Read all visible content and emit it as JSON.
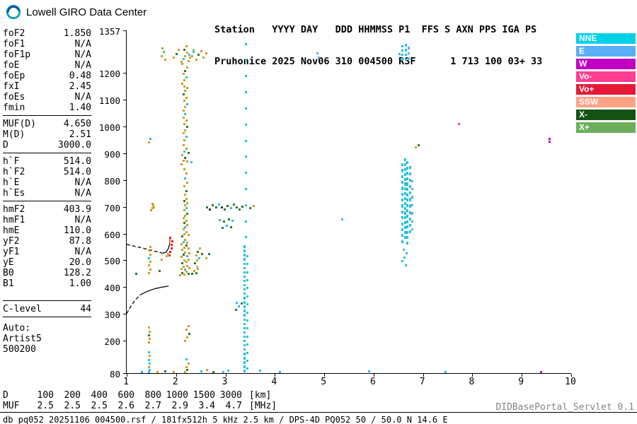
{
  "header": {
    "logo_title": "Lowell GIRO Data Center",
    "station_line1": "Station   YYYY DAY   DDD HHMMSS P1  FFS S AXN PPS IGA PS",
    "station_line2": "Pruhonice 2025 Nov06 310 004500 RSF      1 713 100 03+ 33"
  },
  "params": {
    "groups": [
      {
        "rows": [
          [
            "foF2",
            "1.850"
          ],
          [
            "foF1",
            "N/A"
          ],
          [
            "foF1p",
            "N/A"
          ],
          [
            "foE",
            "N/A"
          ],
          [
            "foEp",
            "0.48"
          ],
          [
            "fxI",
            "2.45"
          ],
          [
            "foEs",
            "N/A"
          ],
          [
            "fmin",
            "1.40"
          ]
        ]
      },
      {
        "rows": [
          [
            "MUF(D)",
            "4.650"
          ],
          [
            "M(D)",
            "2.51"
          ],
          [
            "D",
            "3000.0"
          ]
        ]
      },
      {
        "rows": [
          [
            "h`F",
            "514.0"
          ],
          [
            "h`F2",
            "514.0"
          ],
          [
            "h`E",
            "N/A"
          ],
          [
            "h`Es",
            "N/A"
          ]
        ]
      },
      {
        "rows": [
          [
            "hmF2",
            "403.9"
          ],
          [
            "hmF1",
            "N/A"
          ],
          [
            "hmE",
            "110.0"
          ],
          [
            "yF2",
            "87.8"
          ],
          [
            "yF1",
            "N/A"
          ],
          [
            "yE",
            "20.0"
          ],
          [
            "B0",
            "128.2"
          ],
          [
            "B1",
            "1.00"
          ]
        ]
      },
      {
        "rows": [
          [
            "C-level",
            "44"
          ]
        ]
      }
    ],
    "auto_lines": [
      "Auto:",
      "Artist5",
      "500200"
    ]
  },
  "legend": {
    "items": [
      {
        "label": "NNE",
        "color": "#00d0e8"
      },
      {
        "label": "E",
        "color": "#5aaef5"
      },
      {
        "label": "W",
        "color": "#c000c0"
      },
      {
        "label": "Vo-",
        "color": "#ff3d92"
      },
      {
        "label": "Vo+",
        "color": "#e51937"
      },
      {
        "label": "SSW",
        "color": "#ffa284"
      },
      {
        "label": "X-",
        "color": "#145214"
      },
      {
        "label": "X+",
        "color": "#6cae5c"
      }
    ]
  },
  "footer": {
    "d_row": {
      "label": "D",
      "values": [
        "100",
        "200",
        "400",
        "600",
        "800",
        "1000",
        "1500",
        "3000"
      ],
      "unit": "[km]"
    },
    "muf_row": {
      "label": "MUF",
      "values": [
        "2.5",
        "2.5",
        "2.5",
        "2.6",
        "2.7",
        "2.9",
        "3.4",
        "4.7"
      ],
      "unit": "[MHz]"
    },
    "status": "db pq052 20251106 004500.rsf / 181fx512h 5 kHz 2.5 km / DPS-4D PQ052 50 / 50.0 N 14.6 E",
    "servlet": "DIDBasePortal_Servlet 0.1"
  },
  "chart_data": {
    "type": "scatter",
    "title": "",
    "x_unit": "[MHz]",
    "y_unit": "[km]",
    "xlim": [
      1,
      10
    ],
    "ylim": [
      80,
      1357
    ],
    "x_ticks": [
      1,
      2,
      3,
      4,
      5,
      6,
      7,
      8,
      9,
      10
    ],
    "y_ticks": [
      1357,
      1200,
      1100,
      1000,
      900,
      800,
      700,
      600,
      500,
      400,
      300,
      200,
      80
    ],
    "grid": false,
    "legend_position": "right",
    "colors": {
      "a": "#c8a028",
      "g": "#2f7a2f",
      "c": "#25c0dd",
      "b": "#5aaef5",
      "r": "#e02020",
      "m": "#bb00bb",
      "p": "#ff3d92",
      "k": "#333333",
      "l": "#8fcf6f",
      "s": "#ffa284"
    },
    "points": [
      [
        1.7,
        1262,
        "a"
      ],
      [
        1.74,
        1277,
        "c"
      ],
      [
        1.78,
        1250,
        "a"
      ],
      [
        1.72,
        1290,
        "a"
      ],
      [
        1.95,
        1256,
        "a"
      ],
      [
        2.0,
        1271,
        "g"
      ],
      [
        2.05,
        1286,
        "a"
      ],
      [
        2.1,
        1240,
        "a"
      ],
      [
        2.14,
        1252,
        "c"
      ],
      [
        2.18,
        1263,
        "a"
      ],
      [
        2.22,
        1275,
        "a"
      ],
      [
        2.16,
        1287,
        "g"
      ],
      [
        2.2,
        1298,
        "a"
      ],
      [
        2.12,
        1232,
        "a"
      ],
      [
        2.24,
        1244,
        "a"
      ],
      [
        2.26,
        1268,
        "c"
      ],
      [
        2.28,
        1256,
        "a"
      ],
      [
        2.32,
        1262,
        "a"
      ],
      [
        2.34,
        1285,
        "l"
      ],
      [
        2.35,
        1278,
        "c"
      ],
      [
        2.4,
        1250,
        "a"
      ],
      [
        2.45,
        1268,
        "g"
      ],
      [
        2.5,
        1280,
        "a"
      ],
      [
        2.55,
        1258,
        "a"
      ],
      [
        2.6,
        1272,
        "a"
      ],
      [
        4.85,
        1272,
        "b"
      ],
      [
        4.88,
        1258,
        "b"
      ],
      [
        6.52,
        1270,
        "c"
      ],
      [
        2.12,
        1160,
        "a"
      ],
      [
        2.16,
        1172,
        "a"
      ],
      [
        2.2,
        1184,
        "c"
      ],
      [
        2.14,
        1196,
        "a"
      ],
      [
        2.18,
        1208,
        "g"
      ],
      [
        2.22,
        1220,
        "a"
      ],
      [
        2.16,
        1150,
        "a"
      ],
      [
        2.14,
        1060,
        "a"
      ],
      [
        2.18,
        1072,
        "a"
      ],
      [
        2.22,
        1084,
        "c"
      ],
      [
        2.16,
        1096,
        "a"
      ],
      [
        2.2,
        1108,
        "a"
      ],
      [
        2.14,
        1120,
        "g"
      ],
      [
        2.18,
        1132,
        "a"
      ],
      [
        2.22,
        1144,
        "a"
      ],
      [
        2.16,
        950,
        "a"
      ],
      [
        2.2,
        962,
        "c"
      ],
      [
        2.14,
        974,
        "a"
      ],
      [
        2.18,
        986,
        "a"
      ],
      [
        2.22,
        998,
        "g"
      ],
      [
        2.16,
        1010,
        "a"
      ],
      [
        2.2,
        1022,
        "a"
      ],
      [
        2.14,
        1034,
        "a"
      ],
      [
        2.18,
        1046,
        "c"
      ],
      [
        2.1,
        860,
        "a"
      ],
      [
        2.14,
        872,
        "a"
      ],
      [
        2.18,
        882,
        "g"
      ],
      [
        2.22,
        870,
        "a"
      ],
      [
        2.12,
        894,
        "a"
      ],
      [
        2.16,
        906,
        "c"
      ],
      [
        2.2,
        918,
        "a"
      ],
      [
        2.24,
        902,
        "g"
      ],
      [
        2.14,
        930,
        "a"
      ],
      [
        2.3,
        868,
        "c"
      ],
      [
        2.08,
        445,
        "a"
      ],
      [
        2.12,
        455,
        "g"
      ],
      [
        2.16,
        448,
        "a"
      ],
      [
        2.2,
        460,
        "a"
      ],
      [
        2.24,
        452,
        "g"
      ],
      [
        2.1,
        470,
        "a"
      ],
      [
        2.14,
        478,
        "a"
      ],
      [
        2.18,
        468,
        "c"
      ],
      [
        2.22,
        480,
        "a"
      ],
      [
        2.26,
        472,
        "a"
      ],
      [
        2.12,
        492,
        "g"
      ],
      [
        2.16,
        500,
        "a"
      ],
      [
        2.2,
        495,
        "a"
      ],
      [
        2.24,
        505,
        "a"
      ],
      [
        2.1,
        515,
        "a"
      ],
      [
        2.14,
        522,
        "g"
      ],
      [
        2.18,
        530,
        "a"
      ],
      [
        2.22,
        518,
        "c"
      ],
      [
        2.26,
        528,
        "a"
      ],
      [
        2.12,
        540,
        "a"
      ],
      [
        2.16,
        548,
        "a"
      ],
      [
        2.2,
        556,
        "g"
      ],
      [
        2.24,
        546,
        "a"
      ],
      [
        2.1,
        562,
        "a"
      ],
      [
        2.14,
        570,
        "c"
      ],
      [
        2.18,
        578,
        "a"
      ],
      [
        2.22,
        568,
        "a"
      ],
      [
        2.12,
        590,
        "g"
      ],
      [
        2.16,
        598,
        "a"
      ],
      [
        2.2,
        606,
        "a"
      ],
      [
        2.24,
        596,
        "a"
      ],
      [
        2.14,
        616,
        "a"
      ],
      [
        2.18,
        624,
        "c"
      ],
      [
        2.22,
        632,
        "a"
      ],
      [
        2.16,
        642,
        "g"
      ],
      [
        2.2,
        650,
        "a"
      ],
      [
        2.14,
        660,
        "a"
      ],
      [
        2.18,
        668,
        "a"
      ],
      [
        2.22,
        676,
        "g"
      ],
      [
        2.16,
        688,
        "a"
      ],
      [
        2.2,
        696,
        "c"
      ],
      [
        2.18,
        706,
        "a"
      ],
      [
        2.22,
        714,
        "a"
      ],
      [
        2.16,
        722,
        "g"
      ],
      [
        2.2,
        730,
        "a"
      ],
      [
        2.18,
        745,
        "a"
      ],
      [
        2.2,
        760,
        "g"
      ],
      [
        2.16,
        778,
        "a"
      ],
      [
        2.22,
        792,
        "a"
      ],
      [
        2.18,
        808,
        "c"
      ],
      [
        2.2,
        824,
        "a"
      ],
      [
        2.16,
        840,
        "a"
      ],
      [
        2.32,
        450,
        "g"
      ],
      [
        2.36,
        462,
        "a"
      ],
      [
        2.4,
        455,
        "g"
      ],
      [
        2.42,
        478,
        "l"
      ],
      [
        2.44,
        470,
        "a"
      ],
      [
        2.38,
        490,
        "g"
      ],
      [
        2.42,
        500,
        "a"
      ],
      [
        2.46,
        510,
        "c"
      ],
      [
        2.4,
        520,
        "a"
      ],
      [
        2.44,
        532,
        "g"
      ],
      [
        2.48,
        545,
        "a"
      ],
      [
        2.52,
        526,
        "g"
      ],
      [
        2.6,
        510,
        "a"
      ],
      [
        2.66,
        525,
        "g"
      ],
      [
        1.86,
        520,
        "r"
      ],
      [
        1.88,
        532,
        "r"
      ],
      [
        1.9,
        545,
        "r"
      ],
      [
        1.9,
        558,
        "r"
      ],
      [
        1.92,
        572,
        "r"
      ],
      [
        1.88,
        585,
        "r"
      ],
      [
        1.8,
        516,
        "a"
      ],
      [
        1.83,
        524,
        "a"
      ],
      [
        1.44,
        85,
        "c"
      ],
      [
        1.46,
        93,
        "c"
      ],
      [
        1.44,
        104,
        "a"
      ],
      [
        1.46,
        117,
        "c"
      ],
      [
        1.44,
        131,
        "c"
      ],
      [
        1.46,
        147,
        "a"
      ],
      [
        1.45,
        160,
        "c"
      ],
      [
        1.44,
        195,
        "a"
      ],
      [
        1.46,
        208,
        "a"
      ],
      [
        1.44,
        222,
        "g"
      ],
      [
        1.46,
        236,
        "a"
      ],
      [
        1.44,
        250,
        "a"
      ],
      [
        1.45,
        455,
        "a"
      ],
      [
        1.47,
        468,
        "a"
      ],
      [
        1.45,
        482,
        "a"
      ],
      [
        1.47,
        496,
        "a"
      ],
      [
        1.45,
        509,
        "c"
      ],
      [
        1.47,
        523,
        "a"
      ],
      [
        1.45,
        537,
        "a"
      ],
      [
        1.47,
        550,
        "a"
      ],
      [
        1.49,
        688,
        "a"
      ],
      [
        1.51,
        697,
        "a"
      ],
      [
        1.53,
        706,
        "a"
      ],
      [
        1.55,
        699,
        "a"
      ],
      [
        1.51,
        713,
        "a"
      ],
      [
        1.45,
        940,
        "a"
      ],
      [
        1.47,
        955,
        "c"
      ],
      [
        1.18,
        452,
        "g"
      ],
      [
        1.66,
        462,
        "g"
      ],
      [
        1.7,
        505,
        "a"
      ],
      [
        1.3,
        86,
        "c"
      ],
      [
        1.62,
        86,
        "a"
      ],
      [
        1.78,
        88,
        "g"
      ],
      [
        1.95,
        85,
        "a"
      ],
      [
        2.18,
        85,
        "a"
      ],
      [
        2.22,
        93,
        "g"
      ],
      [
        2.2,
        105,
        "a"
      ],
      [
        2.24,
        118,
        "a"
      ],
      [
        2.2,
        132,
        "c"
      ],
      [
        2.18,
        200,
        "a"
      ],
      [
        2.22,
        214,
        "a"
      ],
      [
        2.26,
        228,
        "g"
      ],
      [
        2.2,
        242,
        "a"
      ],
      [
        2.24,
        256,
        "a"
      ],
      [
        2.5,
        88,
        "c"
      ],
      [
        2.62,
        94,
        "a"
      ],
      [
        2.75,
        86,
        "g"
      ],
      [
        2.95,
        86,
        "b"
      ],
      [
        3.05,
        90,
        "c"
      ],
      [
        3.7,
        90,
        "c"
      ],
      [
        4.1,
        86,
        "c"
      ],
      [
        5.9,
        88,
        "c"
      ],
      [
        7.45,
        86,
        "c"
      ],
      [
        9.38,
        86,
        "m"
      ],
      [
        2.62,
        700,
        "g"
      ],
      [
        2.68,
        692,
        "k"
      ],
      [
        2.74,
        706,
        "g"
      ],
      [
        2.8,
        698,
        "g"
      ],
      [
        2.86,
        710,
        "c"
      ],
      [
        2.92,
        700,
        "k"
      ],
      [
        2.98,
        692,
        "g"
      ],
      [
        3.04,
        704,
        "g"
      ],
      [
        3.1,
        696,
        "c"
      ],
      [
        3.16,
        708,
        "g"
      ],
      [
        3.22,
        698,
        "g"
      ],
      [
        3.28,
        690,
        "g"
      ],
      [
        3.34,
        702,
        "g"
      ],
      [
        3.5,
        696,
        "g"
      ],
      [
        3.56,
        703,
        "a"
      ],
      [
        2.88,
        652,
        "c"
      ],
      [
        2.96,
        645,
        "g"
      ],
      [
        3.06,
        655,
        "g"
      ],
      [
        3.14,
        648,
        "c"
      ],
      [
        2.94,
        622,
        "g"
      ],
      [
        3.02,
        630,
        "c"
      ],
      [
        3.1,
        625,
        "g"
      ],
      [
        3.2,
        318,
        "g"
      ],
      [
        3.26,
        330,
        "c"
      ],
      [
        3.32,
        341,
        "g"
      ],
      [
        3.22,
        343,
        "c"
      ],
      [
        5.35,
        655,
        "b"
      ],
      [
        6.6,
        540,
        "b"
      ],
      [
        6.66,
        528,
        "c"
      ],
      [
        6.62,
        512,
        "c"
      ],
      [
        6.58,
        498,
        "c"
      ],
      [
        6.64,
        484,
        "c"
      ],
      [
        6.85,
        922,
        "a"
      ],
      [
        6.9,
        931,
        "g"
      ],
      [
        7.72,
        1010,
        "p"
      ],
      [
        9.55,
        943,
        "m"
      ],
      [
        9.56,
        953,
        "m"
      ]
    ],
    "streaks": [
      {
        "x": 3.38,
        "y0": 80,
        "y1": 556,
        "step": 16,
        "len": 9,
        "c": "c"
      },
      {
        "x": 3.44,
        "y0": 80,
        "y1": 520,
        "step": 30,
        "len": 8,
        "c": "c"
      },
      {
        "x": 3.41,
        "y0": 580,
        "y1": 1310,
        "step": 60,
        "len": 8,
        "c": "c"
      },
      {
        "x": 6.58,
        "y0": 560,
        "y1": 862,
        "step": 22,
        "len": 11,
        "c": "c"
      },
      {
        "x": 6.63,
        "y0": 575,
        "y1": 880,
        "step": 18,
        "len": 11,
        "c": "c"
      },
      {
        "x": 6.68,
        "y0": 552,
        "y1": 870,
        "step": 20,
        "len": 11,
        "c": "c"
      },
      {
        "x": 6.73,
        "y0": 590,
        "y1": 852,
        "step": 24,
        "len": 11,
        "c": "c"
      },
      {
        "x": 6.78,
        "y0": 612,
        "y1": 800,
        "step": 30,
        "len": 9,
        "c": "b"
      },
      {
        "x": 6.58,
        "y0": 1246,
        "y1": 1302,
        "step": 16,
        "len": 9,
        "c": "c"
      },
      {
        "x": 6.64,
        "y0": 1252,
        "y1": 1306,
        "step": 18,
        "len": 9,
        "c": "c"
      },
      {
        "x": 6.7,
        "y0": 1240,
        "y1": 1296,
        "step": 20,
        "len": 9,
        "c": "b"
      }
    ],
    "profile_segments": [
      {
        "style": "dashed",
        "color": "#000000",
        "pts": [
          [
            1.0,
            560
          ],
          [
            1.15,
            553
          ],
          [
            1.3,
            547
          ],
          [
            1.45,
            540
          ],
          [
            1.6,
            533
          ],
          [
            1.72,
            527
          ]
        ]
      },
      {
        "style": "solid",
        "color": "#000000",
        "pts": [
          [
            1.72,
            527
          ],
          [
            1.8,
            531
          ],
          [
            1.84,
            543
          ],
          [
            1.87,
            560
          ]
        ]
      },
      {
        "style": "solid",
        "color": "#cc2200",
        "pts": [
          [
            1.87,
            560
          ],
          [
            1.88,
            582
          ]
        ]
      },
      {
        "style": "dashed",
        "color": "#000000",
        "pts": [
          [
            1.0,
            302
          ],
          [
            1.08,
            328
          ],
          [
            1.17,
            352
          ],
          [
            1.28,
            372
          ]
        ]
      },
      {
        "style": "solid",
        "color": "#000000",
        "pts": [
          [
            1.28,
            372
          ],
          [
            1.42,
            385
          ],
          [
            1.56,
            394
          ],
          [
            1.7,
            400
          ],
          [
            1.85,
            404
          ]
        ]
      }
    ]
  }
}
